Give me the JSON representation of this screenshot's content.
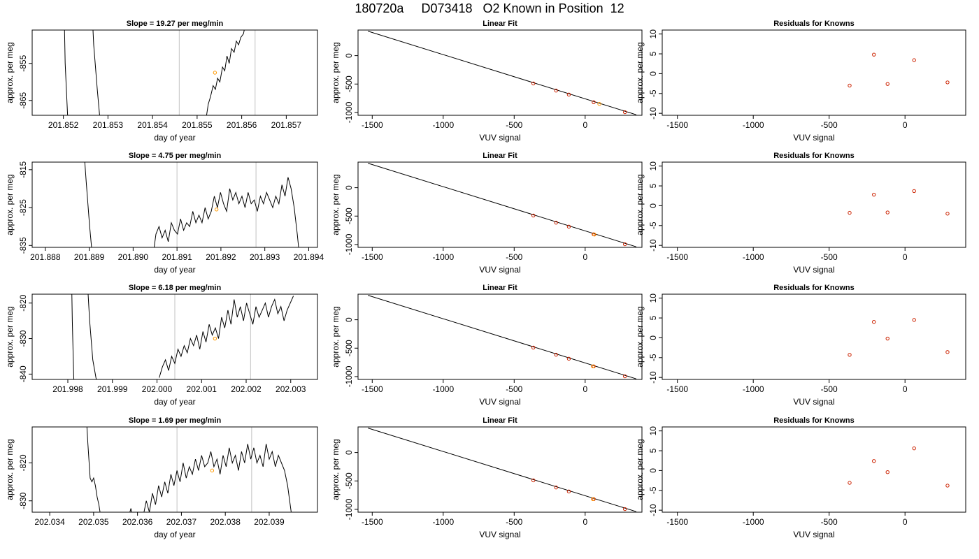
{
  "main_title": "180720a     D073418   O2 Known in Position  12",
  "colors": {
    "trace": "#000000",
    "vline": "#cccccc",
    "known_point": "#ff9900",
    "residual_point": "#cc2200",
    "fit_line": "#000000"
  },
  "chart_data": [
    {
      "type": "line",
      "title": "Slope =  19.27  per meg/min",
      "xlabel": "day of year",
      "ylabel": "approx. per meg",
      "xlim": [
        201.8513,
        201.8577
      ],
      "ylim": [
        -869,
        -846
      ],
      "xticks": [
        201.852,
        201.853,
        201.854,
        201.855,
        201.856,
        201.857
      ],
      "xtick_labels": [
        "201.852",
        "201.853",
        "201.854",
        "201.855",
        "201.856",
        "201.857"
      ],
      "yticks": [
        -865,
        -855
      ],
      "ytick_labels": [
        "-865",
        "-855"
      ],
      "vlines": [
        201.8546,
        201.8563
      ],
      "known_point": {
        "x": 201.8554,
        "y": -857.5
      },
      "segments": [
        {
          "x": [
            201.85197,
            201.852,
            201.85204,
            201.85209,
            201.85212
          ],
          "y": [
            -800,
            -830,
            -855,
            -868,
            -875
          ]
        },
        {
          "x": [
            201.85252,
            201.8526,
            201.85268,
            201.85276,
            201.85282,
            201.85288
          ],
          "y": [
            -800,
            -830,
            -850,
            -862,
            -870,
            -878
          ]
        },
        {
          "x": [
            201.8552,
            201.85525,
            201.8553,
            201.85536,
            201.85541,
            201.85546,
            201.85551,
            201.85557,
            201.85562,
            201.85567,
            201.85572,
            201.85577,
            201.85583,
            201.85588,
            201.85593,
            201.85598,
            201.85604,
            201.85609
          ],
          "y": [
            -870,
            -866,
            -864,
            -861,
            -862,
            -859,
            -860,
            -856,
            -857,
            -853,
            -855,
            -851,
            -852,
            -849,
            -850,
            -848,
            -847,
            -844
          ]
        }
      ]
    },
    {
      "type": "line",
      "title": "Slope =  4.75  per meg/min",
      "xlabel": "day of year",
      "ylabel": "approx. per meg",
      "xlim": [
        201.8877,
        201.8942
      ],
      "ylim": [
        -835.5,
        -813
      ],
      "xticks": [
        201.888,
        201.889,
        201.89,
        201.891,
        201.892,
        201.893,
        201.894
      ],
      "xtick_labels": [
        "201.888",
        "201.889",
        "201.890",
        "201.891",
        "201.892",
        "201.893",
        "201.894"
      ],
      "yticks": [
        -835,
        -825,
        -815
      ],
      "ytick_labels": [
        "-835",
        "-825",
        "-815"
      ],
      "vlines": [
        201.891,
        201.8928
      ],
      "known_point": {
        "x": 201.8919,
        "y": -825.5
      },
      "segments": [
        {
          "x": [
            201.88885,
            201.88893,
            201.88901,
            201.88909,
            201.88913
          ],
          "y": [
            -805,
            -818,
            -830,
            -840,
            -845
          ]
        },
        {
          "x": [
            201.89045,
            201.89052,
            201.89059,
            201.89066,
            201.89073,
            201.8908,
            201.89087,
            201.89094,
            201.89101,
            201.89108,
            201.89115,
            201.89122,
            201.89129,
            201.89136,
            201.89143,
            201.8915,
            201.89157,
            201.89164,
            201.89171,
            201.89178,
            201.89185,
            201.89192,
            201.89199,
            201.89206,
            201.89213,
            201.8922,
            201.89227,
            201.89234,
            201.89241,
            201.89248,
            201.89255,
            201.89262,
            201.89269,
            201.89276,
            201.89283,
            201.8929,
            201.89297,
            201.89304,
            201.89311,
            201.89318,
            201.89325,
            201.89332,
            201.89339,
            201.89346,
            201.89353,
            201.8936,
            201.89367,
            201.89374,
            201.89381
          ],
          "y": [
            -838,
            -832,
            -830,
            -833,
            -831,
            -834,
            -829,
            -831,
            -832,
            -828,
            -831,
            -829,
            -830,
            -826,
            -829,
            -827,
            -829,
            -825,
            -828,
            -826,
            -822,
            -825,
            -821,
            -824,
            -826,
            -820,
            -823,
            -821,
            -824,
            -822,
            -825,
            -821,
            -824,
            -823,
            -826,
            -822,
            -824,
            -821,
            -823,
            -825,
            -822,
            -824,
            -819,
            -822,
            -817,
            -820,
            -825,
            -832,
            -840
          ]
        }
      ]
    },
    {
      "type": "line",
      "title": "Slope =  6.18  per meg/min",
      "xlabel": "day of year",
      "ylabel": "approx. per meg",
      "xlim": [
        201.9972,
        202.0036
      ],
      "ylim": [
        -841.5,
        -817.5
      ],
      "xticks": [
        201.998,
        201.999,
        202.0,
        202.001,
        202.002,
        202.003
      ],
      "xtick_labels": [
        "201.998",
        "201.999",
        "202.000",
        "202.001",
        "202.002",
        "202.003"
      ],
      "yticks": [
        -840,
        -830,
        -820
      ],
      "ytick_labels": [
        "-840",
        "-830",
        "-820"
      ],
      "vlines": [
        202.0004,
        202.0021
      ],
      "known_point": {
        "x": 202.0013,
        "y": -830
      },
      "segments": [
        {
          "x": [
            201.99808,
            201.9981,
            201.99813,
            201.99816
          ],
          "y": [
            -810,
            -825,
            -840,
            -850
          ]
        },
        {
          "x": [
            201.99842,
            201.99849,
            201.99856,
            201.99863,
            201.9987
          ],
          "y": [
            -810,
            -825,
            -836,
            -841,
            -845
          ]
        },
        {
          "x": [
            202.00005,
            202.00012,
            202.00019,
            202.00026,
            202.00033,
            202.0004,
            202.00047,
            202.00054,
            202.00061,
            202.00068,
            202.00075,
            202.00082,
            202.00089,
            202.00096,
            202.00103,
            202.0011,
            202.00117,
            202.00124,
            202.00131,
            202.00138,
            202.00145,
            202.00152,
            202.00159,
            202.00166,
            202.00173,
            202.0018,
            202.00187,
            202.00194,
            202.00201,
            202.00208,
            202.00215,
            202.00222,
            202.00229,
            202.00236,
            202.00243,
            202.0025,
            202.00257,
            202.00264,
            202.00271,
            202.00278,
            202.00285,
            202.00292,
            202.00299,
            202.00306
          ],
          "y": [
            -841,
            -838,
            -836,
            -839,
            -835,
            -837,
            -833,
            -835,
            -832,
            -834,
            -830,
            -832,
            -829,
            -833,
            -828,
            -831,
            -826,
            -829,
            -827,
            -830,
            -824,
            -827,
            -822,
            -826,
            -819,
            -824,
            -821,
            -825,
            -820,
            -823,
            -826,
            -821,
            -824,
            -822,
            -820,
            -824,
            -821,
            -819,
            -823,
            -821,
            -825,
            -822,
            -820,
            -818
          ]
        }
      ]
    },
    {
      "type": "line",
      "title": "Slope =  1.69  per meg/min",
      "xlabel": "day of year",
      "ylabel": "approx. per meg",
      "xlim": [
        202.0336,
        202.0401
      ],
      "ylim": [
        -833,
        -810.5
      ],
      "xticks": [
        202.034,
        202.035,
        202.036,
        202.037,
        202.038,
        202.039
      ],
      "xtick_labels": [
        "202.034",
        "202.035",
        "202.036",
        "202.037",
        "202.038",
        "202.039"
      ],
      "yticks": [
        -830,
        -820
      ],
      "ytick_labels": [
        "-830",
        "-820"
      ],
      "vlines": [
        202.0369,
        202.0386
      ],
      "known_point": {
        "x": 202.0377,
        "y": -822
      },
      "segments": [
        {
          "x": [
            202.03482,
            202.03487,
            202.03492,
            202.03496,
            202.035,
            202.03504,
            202.03508,
            202.03512,
            202.03516,
            202.03521
          ],
          "y": [
            -805,
            -815,
            -824,
            -825,
            -824,
            -826,
            -829,
            -831,
            -834,
            -838
          ]
        },
        {
          "x": [
            202.03578,
            202.03585,
            202.03592,
            202.03599,
            202.03606
          ],
          "y": [
            -835,
            -832,
            -836,
            -833,
            -837
          ]
        },
        {
          "x": [
            202.03613,
            202.0362,
            202.03627,
            202.03634,
            202.03641,
            202.03648,
            202.03655,
            202.03662,
            202.03669,
            202.03676,
            202.03683,
            202.0369,
            202.03697,
            202.03704,
            202.03711,
            202.03718,
            202.03725,
            202.03732,
            202.03739,
            202.03746,
            202.03753,
            202.0376,
            202.03767,
            202.03774,
            202.03781,
            202.03788,
            202.03795,
            202.03802,
            202.03809,
            202.03816,
            202.03823,
            202.0383,
            202.03837,
            202.03844,
            202.03851,
            202.03858,
            202.03865,
            202.03872,
            202.03879,
            202.03886,
            202.03893,
            202.039,
            202.03907,
            202.03914,
            202.03921,
            202.03928,
            202.03935,
            202.03942,
            202.03949,
            202.03956
          ],
          "y": [
            -834,
            -830,
            -833,
            -828,
            -831,
            -826,
            -829,
            -825,
            -828,
            -823,
            -826,
            -822,
            -825,
            -820,
            -824,
            -821,
            -823,
            -819,
            -822,
            -818,
            -821,
            -820,
            -817,
            -821,
            -819,
            -823,
            -818,
            -821,
            -816,
            -820,
            -818,
            -822,
            -817,
            -820,
            -815,
            -819,
            -816,
            -820,
            -818,
            -821,
            -815,
            -819,
            -817,
            -821,
            -818,
            -820,
            -822,
            -826,
            -832,
            -838
          ]
        }
      ]
    },
    {
      "type": "line",
      "title": "Linear Fit",
      "xlabel": "VUV signal",
      "ylabel": "approx. per meg",
      "xlim": [
        -1600,
        400
      ],
      "ylim": [
        -1050,
        450
      ],
      "xticks": [
        -1500,
        -1000,
        -500,
        0
      ],
      "xtick_labels": [
        "-1500",
        "-1000",
        "-500",
        "0"
      ],
      "yticks": [
        -1000,
        -500,
        0
      ],
      "ytick_labels": [
        "-1000",
        "-500",
        "0"
      ],
      "fit_line": {
        "x": [
          -1530,
          360
        ],
        "y": [
          430,
          -1040
        ]
      },
      "knowns": {
        "x": [
          -365,
          -205,
          -115,
          60,
          280
        ],
        "y": [
          -490,
          -615,
          -685,
          -820,
          -995
        ]
      },
      "unknown_point": {
        "x": 100,
        "y": -850
      }
    },
    {
      "type": "line",
      "title": "Linear Fit",
      "xlabel": "VUV signal",
      "ylabel": "approx. per meg",
      "xlim": [
        -1600,
        400
      ],
      "ylim": [
        -1050,
        450
      ],
      "xticks": [
        -1500,
        -1000,
        -500,
        0
      ],
      "xtick_labels": [
        "-1500",
        "-1000",
        "-500",
        "0"
      ],
      "yticks": [
        -1000,
        -500,
        0
      ],
      "ytick_labels": [
        "-1000",
        "-500",
        "0"
      ],
      "fit_line": {
        "x": [
          -1530,
          360
        ],
        "y": [
          430,
          -1040
        ]
      },
      "knowns": {
        "x": [
          -365,
          -205,
          -115,
          60,
          280
        ],
        "y": [
          -490,
          -615,
          -685,
          -820,
          -995
        ]
      },
      "unknown_point": {
        "x": 65,
        "y": -825
      }
    },
    {
      "type": "line",
      "title": "Linear Fit",
      "xlabel": "VUV signal",
      "ylabel": "approx. per meg",
      "xlim": [
        -1600,
        400
      ],
      "ylim": [
        -1050,
        450
      ],
      "xticks": [
        -1500,
        -1000,
        -500,
        0
      ],
      "xtick_labels": [
        "-1500",
        "-1000",
        "-500",
        "0"
      ],
      "yticks": [
        -1000,
        -500,
        0
      ],
      "ytick_labels": [
        "-1000",
        "-500",
        "0"
      ],
      "fit_line": {
        "x": [
          -1530,
          360
        ],
        "y": [
          430,
          -1040
        ]
      },
      "knowns": {
        "x": [
          -365,
          -205,
          -115,
          60,
          280
        ],
        "y": [
          -490,
          -615,
          -685,
          -820,
          -995
        ]
      },
      "unknown_point": {
        "x": 55,
        "y": -820
      }
    },
    {
      "type": "line",
      "title": "Linear Fit",
      "xlabel": "VUV signal",
      "ylabel": "approx. per meg",
      "xlim": [
        -1600,
        400
      ],
      "ylim": [
        -1050,
        450
      ],
      "xticks": [
        -1500,
        -1000,
        -500,
        0
      ],
      "xtick_labels": [
        "-1500",
        "-1000",
        "-500",
        "0"
      ],
      "yticks": [
        -1000,
        -500,
        0
      ],
      "ytick_labels": [
        "-1000",
        "-500",
        "0"
      ],
      "fit_line": {
        "x": [
          -1530,
          360
        ],
        "y": [
          430,
          -1040
        ]
      },
      "knowns": {
        "x": [
          -365,
          -205,
          -115,
          60,
          280
        ],
        "y": [
          -490,
          -615,
          -685,
          -820,
          -995
        ]
      },
      "unknown_point": {
        "x": 55,
        "y": -820
      }
    },
    {
      "type": "scatter",
      "title": "Residuals for Knowns",
      "xlabel": "VUV signal",
      "ylabel": "approx. per meg",
      "xlim": [
        -1600,
        400
      ],
      "ylim": [
        -10.5,
        11
      ],
      "xticks": [
        -1500,
        -1000,
        -500,
        0
      ],
      "xtick_labels": [
        "-1500",
        "-1000",
        "-500",
        "0"
      ],
      "yticks": [
        -10,
        -5,
        0,
        5,
        10
      ],
      "ytick_labels": [
        "-10",
        "-5",
        "0",
        "5",
        "10"
      ],
      "x": [
        -365,
        -205,
        -115,
        60,
        280
      ],
      "y": [
        -3.0,
        4.8,
        -2.6,
        3.4,
        -2.2
      ]
    },
    {
      "type": "scatter",
      "title": "Residuals for Knowns",
      "xlabel": "VUV signal",
      "ylabel": "approx. per meg",
      "xlim": [
        -1600,
        400
      ],
      "ylim": [
        -10.5,
        11
      ],
      "xticks": [
        -1500,
        -1000,
        -500,
        0
      ],
      "xtick_labels": [
        "-1500",
        "-1000",
        "-500",
        "0"
      ],
      "yticks": [
        -10,
        -5,
        0,
        5,
        10
      ],
      "ytick_labels": [
        "-10",
        "-5",
        "0",
        "5",
        "10"
      ],
      "x": [
        -365,
        -205,
        -115,
        60,
        280
      ],
      "y": [
        -1.8,
        2.8,
        -1.7,
        3.7,
        -2.0
      ]
    },
    {
      "type": "scatter",
      "title": "Residuals for Knowns",
      "xlabel": "VUV signal",
      "ylabel": "approx. per meg",
      "xlim": [
        -1600,
        400
      ],
      "ylim": [
        -10.5,
        11
      ],
      "xticks": [
        -1500,
        -1000,
        -500,
        0
      ],
      "xtick_labels": [
        "-1500",
        "-1000",
        "-500",
        "0"
      ],
      "yticks": [
        -10,
        -5,
        0,
        5,
        10
      ],
      "ytick_labels": [
        "-10",
        "-5",
        "0",
        "5",
        "10"
      ],
      "x": [
        -365,
        -205,
        -115,
        60,
        280
      ],
      "y": [
        -4.3,
        4.0,
        -0.2,
        4.5,
        -3.6
      ]
    },
    {
      "type": "scatter",
      "title": "Residuals for Knowns",
      "xlabel": "VUV signal",
      "ylabel": "approx. per meg",
      "xlim": [
        -1600,
        400
      ],
      "ylim": [
        -10.5,
        11
      ],
      "xticks": [
        -1500,
        -1000,
        -500,
        0
      ],
      "xtick_labels": [
        "-1500",
        "-1000",
        "-500",
        "0"
      ],
      "yticks": [
        -10,
        -5,
        0,
        5,
        10
      ],
      "ytick_labels": [
        "-10",
        "-5",
        "0",
        "5",
        "10"
      ],
      "x": [
        -365,
        -205,
        -115,
        60,
        280
      ],
      "y": [
        -3.1,
        2.4,
        -0.4,
        5.6,
        -3.8
      ]
    }
  ]
}
